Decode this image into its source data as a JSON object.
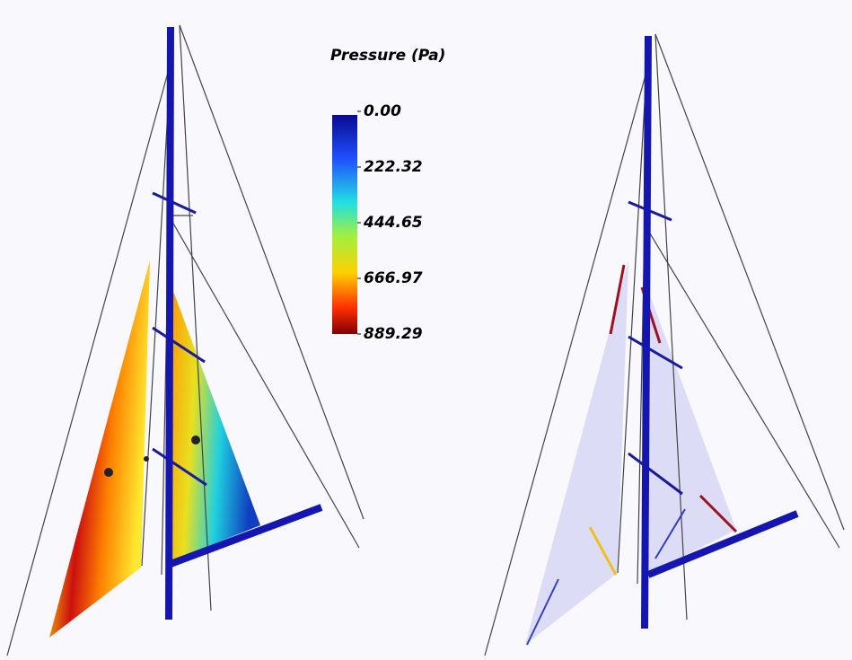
{
  "colorbar": {
    "title": "Pressure (Pa)",
    "ticks": [
      {
        "value": 0,
        "label": "0.00"
      },
      222.32,
      444.65,
      666.97,
      889.29
    ],
    "range": [
      0,
      889.29
    ]
  }
}
